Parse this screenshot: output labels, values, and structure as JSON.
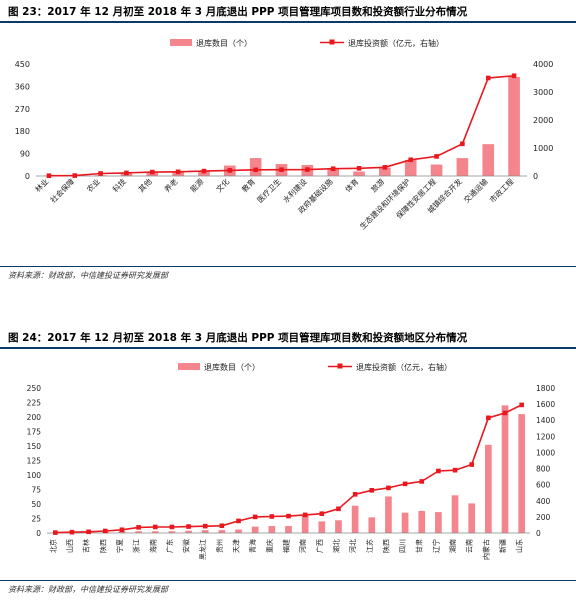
{
  "figures": [
    {
      "title": "图 23：2017 年 12 月初至 2018 年 3 月底退出 PPP 项目管理库项目数和投资额行业分布情况",
      "source": "资料来源：财政部，中信建投证券研究发展部",
      "chart_data": {
        "type": "bar",
        "categories": [
          "林业",
          "社会保障",
          "农业",
          "科技",
          "其他",
          "养老",
          "能源",
          "文化",
          "教育",
          "医疗卫生",
          "水利建设",
          "政府基础设施",
          "体育",
          "旅游",
          "生态建设和环境保护",
          "保障性安居工程",
          "城镇综合开发",
          "交通运输",
          "市政工程"
        ],
        "series": [
          {
            "name": "退库数目（个）",
            "kind": "bar",
            "axis": "left",
            "values": [
              1,
              2,
              3,
              12,
              14,
              16,
              18,
              42,
              72,
              48,
              44,
              30,
              18,
              34,
              64,
              46,
              72,
              128,
              398
            ]
          },
          {
            "name": "退库投资额（亿元，右轴）",
            "kind": "line",
            "axis": "right",
            "values": [
              10,
              15,
              90,
              110,
              140,
              150,
              175,
              200,
              220,
              225,
              230,
              260,
              275,
              310,
              580,
              700,
              1150,
              3500,
              3580
            ]
          }
        ],
        "y_left": {
          "min": 0,
          "max": 450,
          "ticks": [
            0,
            90,
            180,
            270,
            360,
            450
          ]
        },
        "y_right": {
          "min": 0,
          "max": 4000,
          "ticks": [
            0,
            1000,
            2000,
            3000,
            4000
          ]
        },
        "legend": "top-center",
        "colors": {
          "bar": "#f4858d",
          "line": "#e8181e"
        }
      }
    },
    {
      "title": "图 24：2017 年 12 月初至 2018 年 3 月底退出 PPP 项目管理库项目数和投资额地区分布情况",
      "source": "资料来源：财政部，中信建投证券研究发展部",
      "chart_data": {
        "type": "bar",
        "categories": [
          "北京",
          "山西",
          "吉林",
          "陕西",
          "宁夏",
          "浙江",
          "海南",
          "广东",
          "安徽",
          "黑龙江",
          "贵州",
          "天津",
          "青海",
          "重庆",
          "福建",
          "河南",
          "广西",
          "湖北",
          "河北",
          "江苏",
          "陕西",
          "四川",
          "甘肃",
          "辽宁",
          "湖南",
          "云南",
          "内蒙古",
          "新疆",
          "山东"
        ],
        "series": [
          {
            "name": "退库数目（个）",
            "kind": "bar",
            "axis": "left",
            "values": [
              1,
              1,
              2,
              2,
              3,
              3,
              3,
              3,
              4,
              5,
              5,
              6,
              11,
              12,
              12,
              30,
              20,
              22,
              47,
              27,
              63,
              35,
              38,
              36,
              65,
              51,
              152,
              220,
              205
            ]
          },
          {
            "name": "退库投资额（亿元，右轴）",
            "kind": "line",
            "axis": "right",
            "values": [
              5,
              10,
              15,
              25,
              40,
              70,
              75,
              75,
              80,
              85,
              90,
              150,
              200,
              205,
              210,
              225,
              240,
              300,
              480,
              530,
              560,
              610,
              640,
              770,
              780,
              850,
              1430,
              1490,
              1590
            ]
          }
        ],
        "y_left": {
          "min": 0,
          "max": 250,
          "ticks": [
            0,
            25,
            50,
            75,
            100,
            125,
            150,
            175,
            200,
            225,
            250
          ]
        },
        "y_right": {
          "min": 0,
          "max": 1800,
          "ticks": [
            0,
            200,
            400,
            600,
            800,
            1000,
            1200,
            1400,
            1600,
            1800
          ]
        },
        "legend": "top-center",
        "colors": {
          "bar": "#f4858d",
          "line": "#e8181e"
        }
      }
    }
  ]
}
